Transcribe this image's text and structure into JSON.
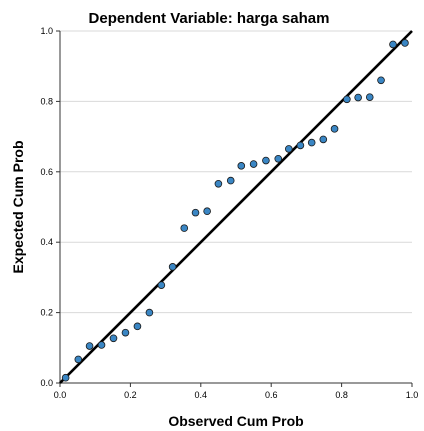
{
  "chart_data": {
    "type": "scatter",
    "title": "Dependent Variable: harga saham",
    "xlabel": "Observed Cum Prob",
    "ylabel": "Expected Cum Prob",
    "xlim": [
      0,
      1
    ],
    "ylim": [
      0,
      1
    ],
    "x_ticks": [
      "0.0",
      "0.2",
      "0.4",
      "0.6",
      "0.8",
      "1.0"
    ],
    "y_ticks": [
      "0.0",
      "0.2",
      "0.4",
      "0.6",
      "0.8",
      "1.0"
    ],
    "grid": "horizontal",
    "reference_line": {
      "from": [
        0,
        0
      ],
      "to": [
        1,
        1
      ]
    },
    "point_color": "#3a86c4",
    "point_stroke": "#1a1a1a",
    "line_color": "#000000",
    "series": [
      {
        "points": [
          [
            0.016,
            0.015
          ],
          [
            0.052,
            0.067
          ],
          [
            0.084,
            0.105
          ],
          [
            0.118,
            0.108
          ],
          [
            0.152,
            0.127
          ],
          [
            0.186,
            0.143
          ],
          [
            0.22,
            0.161
          ],
          [
            0.254,
            0.2
          ],
          [
            0.288,
            0.278
          ],
          [
            0.32,
            0.33
          ],
          [
            0.353,
            0.44
          ],
          [
            0.385,
            0.484
          ],
          [
            0.418,
            0.488
          ],
          [
            0.45,
            0.566
          ],
          [
            0.485,
            0.575
          ],
          [
            0.515,
            0.617
          ],
          [
            0.55,
            0.622
          ],
          [
            0.585,
            0.632
          ],
          [
            0.62,
            0.637
          ],
          [
            0.65,
            0.665
          ],
          [
            0.683,
            0.675
          ],
          [
            0.715,
            0.683
          ],
          [
            0.748,
            0.692
          ],
          [
            0.78,
            0.722
          ],
          [
            0.815,
            0.806
          ],
          [
            0.847,
            0.811
          ],
          [
            0.88,
            0.812
          ],
          [
            0.912,
            0.86
          ],
          [
            0.946,
            0.962
          ],
          [
            0.98,
            0.966
          ]
        ]
      }
    ]
  }
}
